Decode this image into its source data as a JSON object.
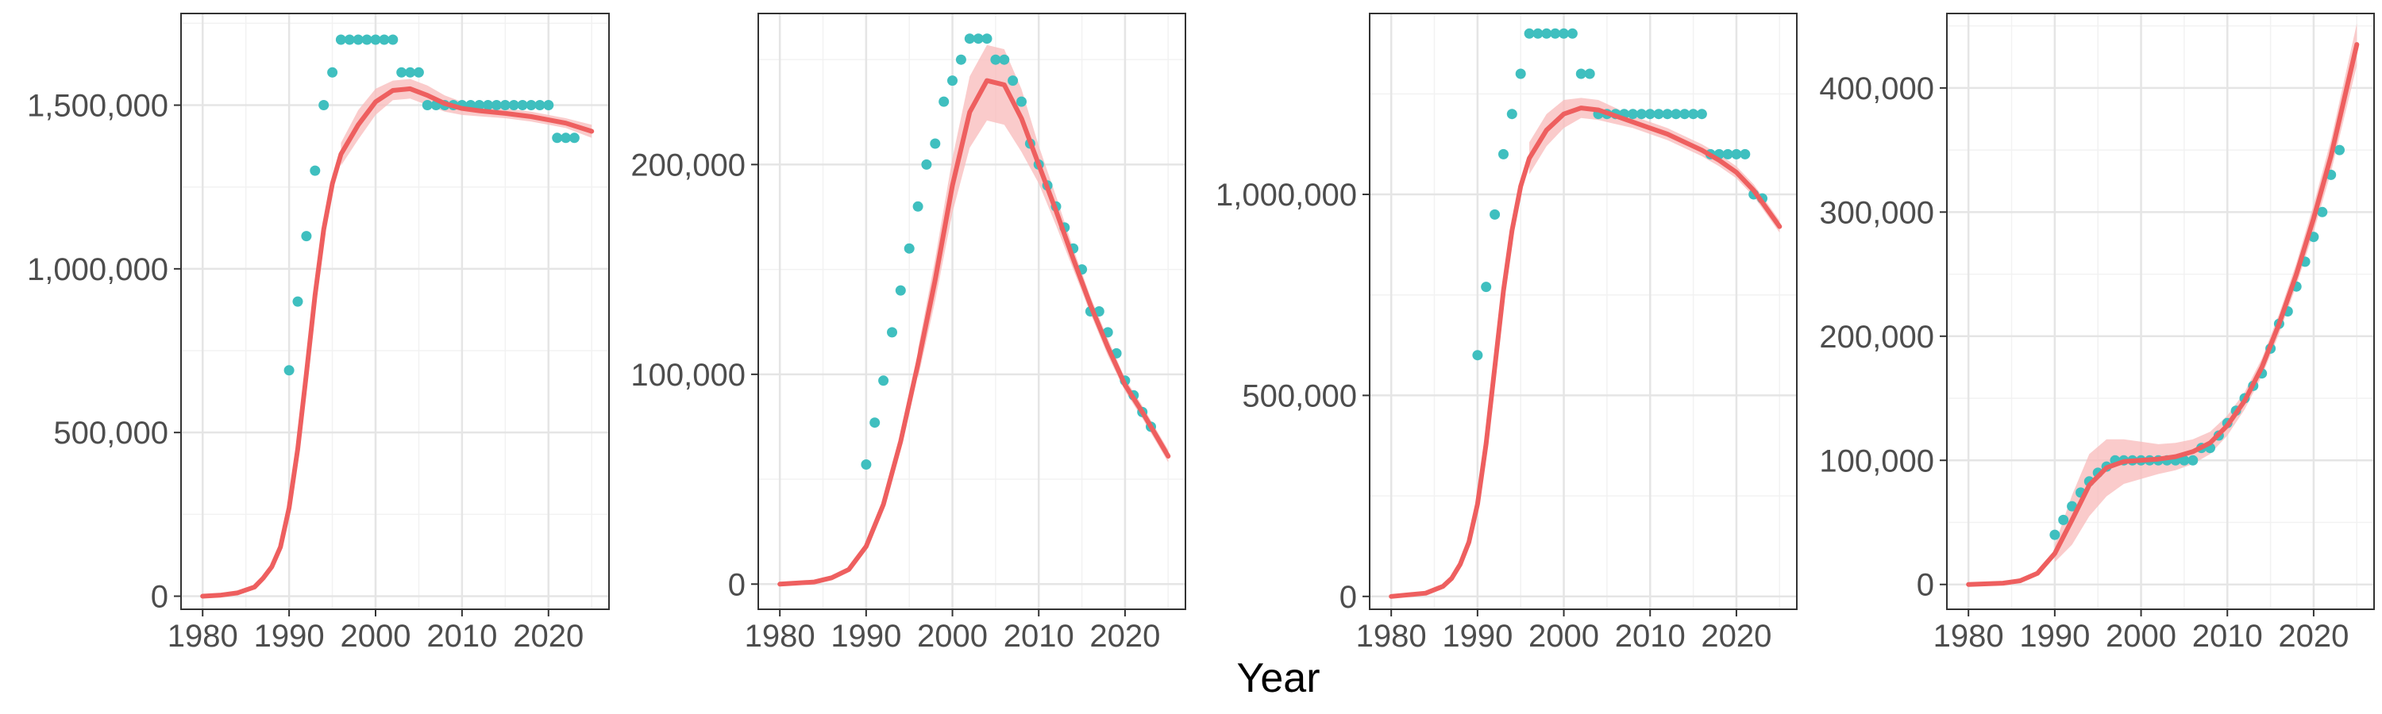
{
  "colors": {
    "fit_line": "#ee5f5f",
    "ribbon": "#f8b9b9",
    "points": "#3fbfbf",
    "grid_major": "#e5e5e5",
    "grid_minor": "#f2f2f2",
    "panel_border": "#333333",
    "tick_text": "#4d4d4d"
  },
  "figure": {
    "xlabel": "Year"
  },
  "chart_data": [
    {
      "type": "line",
      "xlim": [
        1977.5,
        2027
      ],
      "ylim": [
        -40000,
        1780000
      ],
      "x_ticks": [
        1980,
        1990,
        2000,
        2010,
        2020
      ],
      "x_tick_labels": [
        "1980",
        "1990",
        "2000",
        "2010",
        "2020"
      ],
      "y_ticks": [
        0,
        500000,
        1000000,
        1500000
      ],
      "y_tick_labels": [
        "0",
        "500,000",
        "1,000,000",
        "1,500,000"
      ],
      "grid": true,
      "series": [
        {
          "kind": "fit",
          "x": [
            1980,
            1982,
            1984,
            1986,
            1987,
            1988,
            1989,
            1990,
            1991,
            1992,
            1993,
            1994,
            1995,
            1996,
            1998,
            2000,
            2002,
            2004,
            2006,
            2008,
            2010,
            2012,
            2015,
            2018,
            2020,
            2022,
            2025
          ],
          "y": [
            0,
            3000,
            10000,
            28000,
            55000,
            90000,
            150000,
            270000,
            450000,
            680000,
            920000,
            1120000,
            1260000,
            1350000,
            1440000,
            1510000,
            1545000,
            1550000,
            1530000,
            1505000,
            1490000,
            1483000,
            1475000,
            1465000,
            1455000,
            1445000,
            1420000
          ]
        },
        {
          "kind": "ribbon",
          "x": [
            1996,
            1998,
            2000,
            2002,
            2004,
            2006,
            2008,
            2010,
            2012,
            2015,
            2018,
            2020,
            2022,
            2025
          ],
          "upper": [
            1385000,
            1485000,
            1550000,
            1575000,
            1580000,
            1560000,
            1530000,
            1510000,
            1500000,
            1490000,
            1480000,
            1470000,
            1460000,
            1440000
          ],
          "lower": [
            1315000,
            1395000,
            1470000,
            1515000,
            1520000,
            1500000,
            1480000,
            1470000,
            1466000,
            1460000,
            1450000,
            1440000,
            1430000,
            1400000
          ]
        },
        {
          "kind": "points",
          "x": [
            1990,
            1991,
            1992,
            1993,
            1994,
            1995,
            1996,
            1997,
            1998,
            1999,
            2000,
            2001,
            2002,
            2003,
            2004,
            2005,
            2006,
            2007,
            2008,
            2009,
            2010,
            2011,
            2012,
            2013,
            2014,
            2015,
            2016,
            2017,
            2018,
            2019,
            2020,
            2021,
            2022,
            2023
          ],
          "y": [
            690000,
            900000,
            1100000,
            1300000,
            1500000,
            1600000,
            1700000,
            1700000,
            1700000,
            1700000,
            1700000,
            1700000,
            1700000,
            1600000,
            1600000,
            1600000,
            1500000,
            1500000,
            1500000,
            1500000,
            1500000,
            1500000,
            1500000,
            1500000,
            1500000,
            1500000,
            1500000,
            1500000,
            1500000,
            1500000,
            1500000,
            1400000,
            1400000,
            1400000
          ]
        }
      ]
    },
    {
      "type": "line",
      "xlim": [
        1977.5,
        2027
      ],
      "ylim": [
        -12000,
        272000
      ],
      "x_ticks": [
        1980,
        1990,
        2000,
        2010,
        2020
      ],
      "x_tick_labels": [
        "1980",
        "1990",
        "2000",
        "2010",
        "2020"
      ],
      "y_ticks": [
        0,
        100000,
        200000
      ],
      "y_tick_labels": [
        "0",
        "100,000",
        "200,000"
      ],
      "grid": true,
      "series": [
        {
          "kind": "fit",
          "x": [
            1980,
            1984,
            1986,
            1988,
            1990,
            1992,
            1994,
            1996,
            1998,
            2000,
            2002,
            2004,
            2006,
            2008,
            2010,
            2012,
            2014,
            2016,
            2018,
            2020,
            2022,
            2025
          ],
          "y": [
            0,
            1000,
            3000,
            7000,
            18000,
            38000,
            68000,
            105000,
            145000,
            190000,
            225000,
            240000,
            238000,
            222000,
            200000,
            178000,
            155000,
            133000,
            113000,
            95000,
            82000,
            61000
          ]
        },
        {
          "kind": "ribbon",
          "x": [
            1996,
            1998,
            2000,
            2002,
            2004,
            2006,
            2008,
            2010,
            2012,
            2014,
            2016,
            2018,
            2020,
            2022,
            2025
          ],
          "upper": [
            112000,
            155000,
            203000,
            242000,
            257000,
            255000,
            236000,
            209000,
            185000,
            160000,
            137000,
            117000,
            98000,
            85000,
            64000
          ],
          "lower": [
            98000,
            135000,
            177000,
            208000,
            221000,
            219000,
            206000,
            191000,
            171000,
            150000,
            129000,
            109000,
            92000,
            79000,
            58000
          ]
        },
        {
          "kind": "points",
          "x": [
            1990,
            1991,
            1992,
            1993,
            1994,
            1995,
            1996,
            1997,
            1998,
            1999,
            2000,
            2001,
            2002,
            2003,
            2004,
            2005,
            2006,
            2007,
            2008,
            2009,
            2010,
            2011,
            2012,
            2013,
            2014,
            2015,
            2016,
            2017,
            2018,
            2019,
            2020,
            2021,
            2022,
            2023
          ],
          "y": [
            57000,
            77000,
            97000,
            120000,
            140000,
            160000,
            180000,
            200000,
            210000,
            230000,
            240000,
            250000,
            260000,
            260000,
            260000,
            250000,
            250000,
            240000,
            230000,
            210000,
            200000,
            190000,
            180000,
            170000,
            160000,
            150000,
            130000,
            130000,
            120000,
            110000,
            97000,
            90000,
            82000,
            75000
          ]
        }
      ]
    },
    {
      "type": "line",
      "xlim": [
        1977.5,
        2027
      ],
      "ylim": [
        -32000,
        1450000
      ],
      "x_ticks": [
        1980,
        1990,
        2000,
        2010,
        2020
      ],
      "x_tick_labels": [
        "1980",
        "1990",
        "2000",
        "2010",
        "2020"
      ],
      "y_ticks": [
        0,
        500000,
        1000000
      ],
      "y_tick_labels": [
        "0",
        "500,000",
        "1,000,000"
      ],
      "grid": true,
      "series": [
        {
          "kind": "fit",
          "x": [
            1980,
            1984,
            1986,
            1987,
            1988,
            1989,
            1990,
            1991,
            1992,
            1993,
            1994,
            1995,
            1996,
            1998,
            2000,
            2002,
            2004,
            2006,
            2008,
            2010,
            2012,
            2014,
            2016,
            2018,
            2020,
            2022,
            2025
          ],
          "y": [
            0,
            8000,
            25000,
            45000,
            80000,
            135000,
            230000,
            380000,
            570000,
            760000,
            910000,
            1020000,
            1090000,
            1160000,
            1200000,
            1215000,
            1210000,
            1195000,
            1180000,
            1165000,
            1150000,
            1130000,
            1110000,
            1085000,
            1055000,
            1010000,
            920000
          ]
        },
        {
          "kind": "ribbon",
          "x": [
            1996,
            1998,
            2000,
            2002,
            2004,
            2006,
            2008,
            2010,
            2012,
            2014,
            2016,
            2018,
            2020,
            2022,
            2025
          ],
          "upper": [
            1130000,
            1200000,
            1235000,
            1240000,
            1235000,
            1215000,
            1195000,
            1180000,
            1165000,
            1145000,
            1125000,
            1100000,
            1070000,
            1025000,
            935000
          ],
          "lower": [
            1050000,
            1120000,
            1165000,
            1190000,
            1185000,
            1175000,
            1165000,
            1150000,
            1135000,
            1115000,
            1095000,
            1070000,
            1040000,
            995000,
            905000
          ]
        },
        {
          "kind": "points",
          "x": [
            1990,
            1991,
            1992,
            1993,
            1994,
            1995,
            1996,
            1997,
            1998,
            1999,
            2000,
            2001,
            2002,
            2003,
            2004,
            2005,
            2006,
            2007,
            2008,
            2009,
            2010,
            2011,
            2012,
            2013,
            2014,
            2015,
            2016,
            2017,
            2018,
            2019,
            2020,
            2021,
            2022,
            2023
          ],
          "y": [
            600000,
            770000,
            950000,
            1100000,
            1200000,
            1300000,
            1400000,
            1400000,
            1400000,
            1400000,
            1400000,
            1400000,
            1300000,
            1300000,
            1200000,
            1200000,
            1200000,
            1200000,
            1200000,
            1200000,
            1200000,
            1200000,
            1200000,
            1200000,
            1200000,
            1200000,
            1200000,
            1100000,
            1100000,
            1100000,
            1100000,
            1100000,
            1000000,
            990000
          ]
        }
      ]
    },
    {
      "type": "line",
      "xlim": [
        1977.5,
        2027
      ],
      "ylim": [
        -20000,
        460000
      ],
      "x_ticks": [
        1980,
        1990,
        2000,
        2010,
        2020
      ],
      "x_tick_labels": [
        "1980",
        "1990",
        "2000",
        "2010",
        "2020"
      ],
      "y_ticks": [
        0,
        100000,
        200000,
        300000,
        400000
      ],
      "y_tick_labels": [
        "0",
        "100,000",
        "200,000",
        "300,000",
        "400,000"
      ],
      "grid": true,
      "series": [
        {
          "kind": "fit",
          "x": [
            1980,
            1984,
            1986,
            1988,
            1990,
            1992,
            1994,
            1996,
            1998,
            2000,
            2002,
            2004,
            2006,
            2008,
            2010,
            2012,
            2014,
            2016,
            2018,
            2020,
            2022,
            2025
          ],
          "y": [
            0,
            1000,
            3000,
            9000,
            25000,
            52000,
            80000,
            94000,
            99000,
            100000,
            101000,
            103000,
            107000,
            114000,
            128000,
            148000,
            175000,
            210000,
            250000,
            295000,
            345000,
            435000
          ]
        },
        {
          "kind": "ribbon",
          "x": [
            1990,
            1992,
            1994,
            1996,
            1998,
            2000,
            2002,
            2004,
            2006,
            2008,
            2010,
            2012,
            2014,
            2016,
            2018,
            2020,
            2022,
            2025
          ],
          "upper": [
            32000,
            72000,
            105000,
            117000,
            117000,
            115000,
            113000,
            114000,
            117000,
            123000,
            136000,
            155000,
            182000,
            218000,
            259000,
            306000,
            358000,
            452000
          ],
          "lower": [
            18000,
            32000,
            55000,
            71000,
            81000,
            85000,
            89000,
            92000,
            97000,
            105000,
            120000,
            141000,
            168000,
            202000,
            241000,
            284000,
            332000,
            418000
          ]
        },
        {
          "kind": "points",
          "x": [
            1990,
            1991,
            1992,
            1993,
            1994,
            1995,
            1996,
            1997,
            1998,
            1999,
            2000,
            2001,
            2002,
            2003,
            2004,
            2005,
            2006,
            2007,
            2008,
            2009,
            2010,
            2011,
            2012,
            2013,
            2014,
            2015,
            2016,
            2017,
            2018,
            2019,
            2020,
            2021,
            2022,
            2023
          ],
          "y": [
            40000,
            52000,
            63000,
            74000,
            83000,
            90000,
            95000,
            100000,
            100000,
            100000,
            100000,
            100000,
            100000,
            100000,
            100000,
            100000,
            100000,
            110000,
            110000,
            120000,
            130000,
            140000,
            150000,
            160000,
            170000,
            190000,
            210000,
            220000,
            240000,
            260000,
            280000,
            300000,
            330000,
            350000
          ]
        }
      ]
    }
  ]
}
